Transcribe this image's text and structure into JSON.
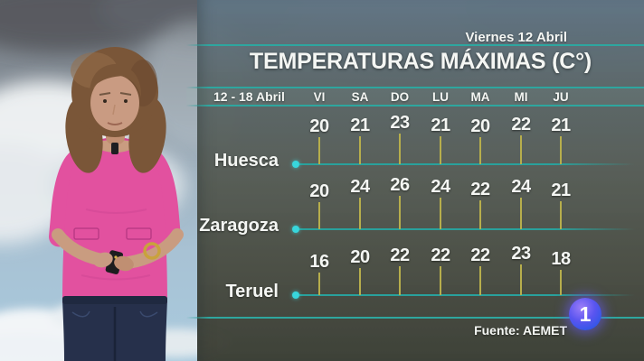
{
  "broadcast": {
    "date_label": "Viernes 12 Abril",
    "title": "TEMPERATURAS MÁXIMAS (C°)",
    "range_label": "12 - 18 Abril",
    "source_label": "Fuente: AEMET",
    "channel_logo_text": "1"
  },
  "chart_data": {
    "type": "bar",
    "variant": "lollipop-stem-rows",
    "title": "TEMPERATURAS MÁXIMAS (C°)",
    "date_range": "12 - 18 Abril",
    "unit": "°C",
    "categories": [
      "VI",
      "SA",
      "DO",
      "LU",
      "MA",
      "MI",
      "JU"
    ],
    "series": [
      {
        "name": "Huesca",
        "values": [
          20,
          21,
          23,
          21,
          20,
          22,
          21
        ]
      },
      {
        "name": "Zaragoza",
        "values": [
          20,
          24,
          26,
          24,
          22,
          24,
          21
        ]
      },
      {
        "name": "Teruel",
        "values": [
          16,
          20,
          22,
          22,
          22,
          23,
          18
        ]
      }
    ],
    "legend_position": "none",
    "grid": false,
    "value_labels_shown": true
  },
  "colors": {
    "teal_rule": "#2ea69f",
    "cyan_dot": "#38d6dc",
    "stem_yellow": "#b7ae4c",
    "text_white": "#f4f6f3",
    "panel_top": "#627787",
    "panel_bottom": "#3b3d33",
    "logo_blue": "#3156e6",
    "logo_purple": "#9b7df8",
    "presenter_shirt_pink": "#e2519f",
    "presenter_jeans_navy": "#26304b"
  }
}
